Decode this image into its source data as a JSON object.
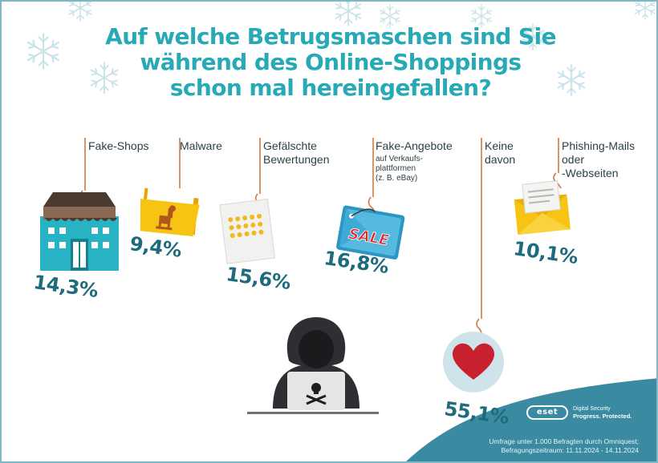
{
  "title": {
    "lines": [
      "Auf welche Betrugsmaschen sind Sie",
      "während des Online-Shoppings",
      "schon mal hereingefallen?"
    ]
  },
  "chart_data": {
    "type": "bar",
    "title": "Auf welche Betrugsmaschen sind Sie während des Online-Shoppings schon mal hereingefallen?",
    "unit": "%",
    "categories": [
      "Fake-Shops",
      "Malware",
      "Gefälschte Bewertungen",
      "Fake-Angebote auf Verkaufs-plattformen (z. B. eBay)",
      "Keine davon",
      "Phishing-Mails oder -Webseiten"
    ],
    "values": [
      14.3,
      9.4,
      15.6,
      16.8,
      55.1,
      10.1
    ]
  },
  "labels": [
    {
      "lines": [
        "Fake-Shops"
      ],
      "pct": "14,3%"
    },
    {
      "lines": [
        "Malware"
      ],
      "pct": "9,4%"
    },
    {
      "lines": [
        "Gefälschte",
        "Bewertungen"
      ],
      "pct": "15,6%"
    },
    {
      "lines": [
        "Fake-Angebote"
      ],
      "sub": [
        "auf Verkaufs-",
        "plattformen",
        "(z. B. eBay)"
      ],
      "pct": "16,8%"
    },
    {
      "lines": [
        "Keine",
        "davon"
      ],
      "pct": "55,1%"
    },
    {
      "lines": [
        "Phishing-Mails",
        "oder",
        "-Webseiten"
      ],
      "pct": "10,1%"
    }
  ],
  "icons": [
    "house-icon",
    "malware-folder-icon",
    "review-stars-icon",
    "sale-tag-icon",
    "heart-icon",
    "envelope-icon",
    "hacker-icon"
  ],
  "sale_text": "SALE",
  "brand": {
    "logo": "eset",
    "tagline": [
      "Digital Security",
      "Progress. Protected."
    ]
  },
  "footnote": [
    "Umfrage unter 1.000 Befragten durch Omniquest;",
    "Befragungszeitraum: 11.11.2024 - 14.11.2024"
  ],
  "colors": {
    "title": "#27a9b6",
    "percent": "#1d6b7d",
    "line": "#d4783f",
    "footer": "#3a8aa1",
    "heart": "#c8202e",
    "snowflake": "#c9e3ea"
  }
}
